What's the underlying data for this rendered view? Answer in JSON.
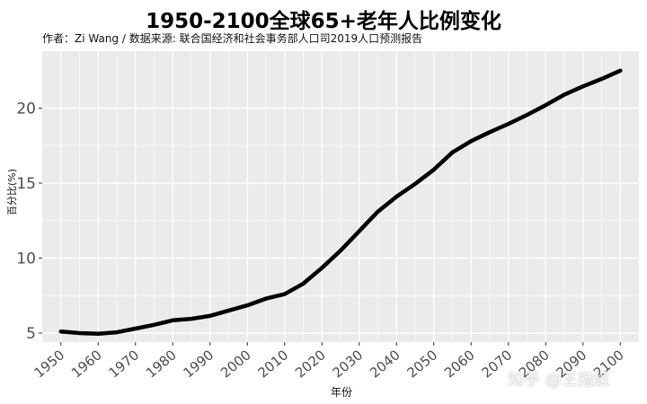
{
  "title": "1950-2100全球65+老年人比例变化",
  "subtitle": "作者：Zi Wang / 数据来源: 联合国经济和社会事务部人口司2019人口预测报告",
  "watermark": "知乎 @王指纸",
  "colors": {
    "panel": "#ebebeb",
    "grid": "#ffffff",
    "line": "#000000",
    "tick_text": "#4d4d4d"
  },
  "chart_data": {
    "type": "line",
    "title": "1950-2100全球65+老年人比例变化",
    "xlabel": "年份",
    "ylabel": "百分比(%)",
    "xlim": [
      1945,
      2105
    ],
    "ylim": [
      4.4,
      23.8
    ],
    "x_ticks": [
      1950,
      1960,
      1970,
      1980,
      1990,
      2000,
      2010,
      2020,
      2030,
      2040,
      2050,
      2060,
      2070,
      2080,
      2090,
      2100
    ],
    "y_ticks": [
      5,
      10,
      15,
      20
    ],
    "grid": true,
    "legend": "none",
    "series": [
      {
        "x": [
          1950,
          1955,
          1960,
          1965,
          1970,
          1975,
          1980,
          1985,
          1990,
          1995,
          2000,
          2005,
          2010,
          2015,
          2020,
          2025,
          2030,
          2035,
          2040,
          2045,
          2050,
          2055,
          2060,
          2065,
          2070,
          2075,
          2080,
          2085,
          2090,
          2095,
          2100
        ],
        "values": [
          5.1,
          5.0,
          4.95,
          5.05,
          5.3,
          5.55,
          5.85,
          5.95,
          6.15,
          6.5,
          6.85,
          7.3,
          7.6,
          8.3,
          9.35,
          10.5,
          11.8,
          13.1,
          14.1,
          14.95,
          15.9,
          17.05,
          17.8,
          18.4,
          18.95,
          19.55,
          20.2,
          20.9,
          21.45,
          21.95,
          22.5
        ]
      }
    ]
  }
}
